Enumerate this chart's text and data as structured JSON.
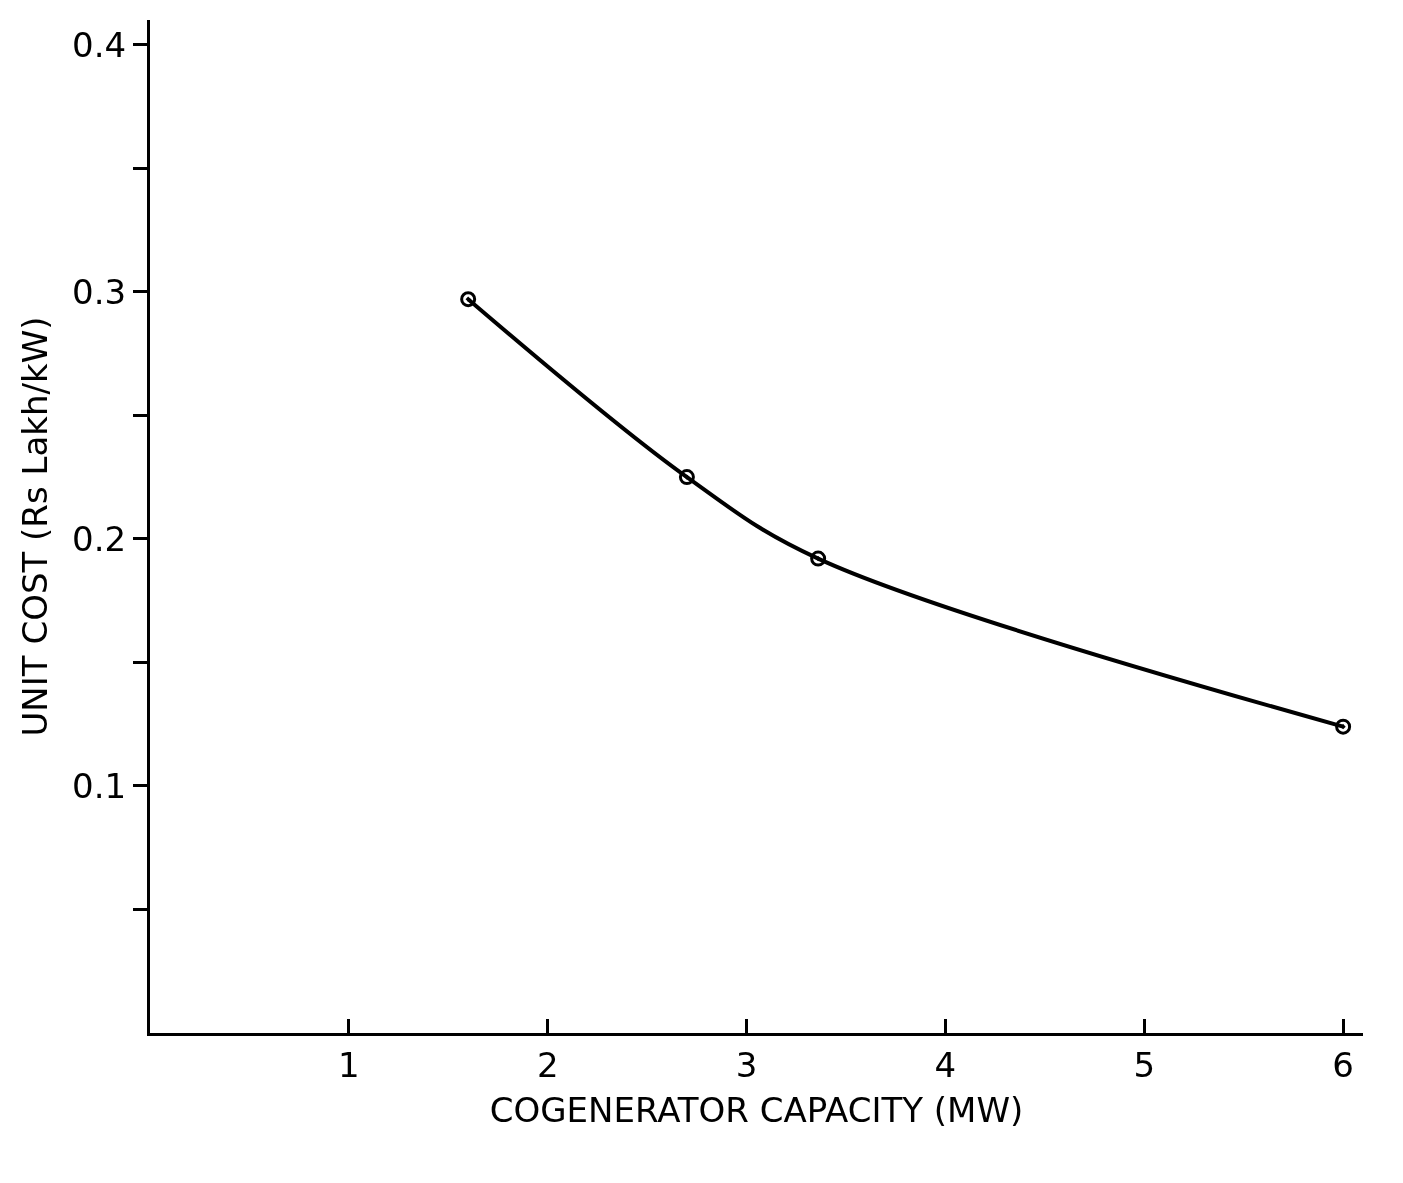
{
  "chart_data": {
    "type": "line",
    "xlabel": "COGENERATOR CAPACITY (MW)",
    "ylabel": "UNIT COST (Rs Lakh/kW)",
    "x": [
      1.6,
      2.7,
      3.36,
      6.0
    ],
    "series": [
      {
        "color": "#000000",
        "values": [
          0.297,
          0.225,
          0.192,
          0.124
        ]
      }
    ],
    "xlim": [
      0,
      6.1
    ],
    "xticks": [
      1,
      2,
      3,
      4,
      5,
      6
    ],
    "ylim": [
      0,
      0.41
    ],
    "yticks": [
      {
        "value": 0.05,
        "label": null
      },
      0.1,
      {
        "value": 0.15,
        "label": null
      },
      0.2,
      {
        "value": 0.25,
        "label": null
      },
      0.3,
      {
        "value": 0.35,
        "label": null
      },
      0.4
    ],
    "marker": "circle",
    "line_style": "solid"
  }
}
